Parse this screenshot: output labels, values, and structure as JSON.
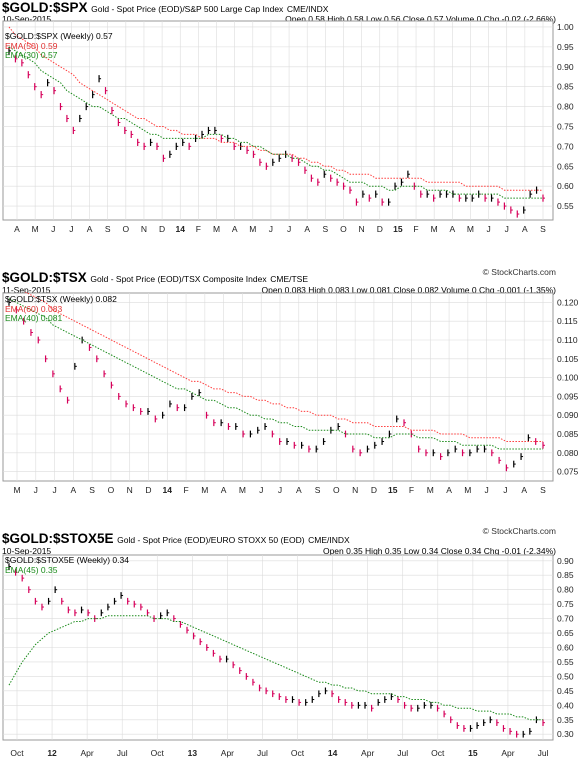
{
  "chart_data": [
    {
      "type": "line",
      "symbol": "$GOLD:$SPX",
      "description": "Gold - Spot Price (EOD)/S&P 500 Large Cap Index",
      "exchange": "CME/INDX",
      "date": "10-Sep-2015",
      "ohlc": {
        "open": "Open 0.58",
        "high": "High 0.58",
        "low": "Low 0.56",
        "close": "Close 0.57",
        "volume": "Volume 0",
        "chg": "Chg -0.02 (-2.66%)"
      },
      "legend": [
        "$GOLD:$SPX (Weekly) 0.57",
        "EMA(50) 0.59",
        "EMA(30) 0.57"
      ],
      "x_tick_labels": [
        "A",
        "M",
        "J",
        "J",
        "A",
        "S",
        "O",
        "N",
        "D",
        "14",
        "F",
        "M",
        "A",
        "M",
        "J",
        "J",
        "A",
        "S",
        "O",
        "N",
        "D",
        "15",
        "F",
        "M",
        "A",
        "M",
        "J",
        "J",
        "A",
        "S"
      ],
      "y_tick_labels": [
        "1.00",
        "0.95",
        "0.90",
        "0.85",
        "0.80",
        "0.75",
        "0.70",
        "0.65",
        "0.60",
        "0.55"
      ],
      "ylim": [
        0.515,
        1.015
      ],
      "series": [
        {
          "name": "$GOLD:$SPX (Weekly)",
          "values": [
            0.94,
            0.92,
            0.91,
            0.88,
            0.85,
            0.83,
            0.86,
            0.84,
            0.8,
            0.77,
            0.74,
            0.77,
            0.8,
            0.83,
            0.87,
            0.84,
            0.79,
            0.76,
            0.74,
            0.73,
            0.71,
            0.7,
            0.71,
            0.7,
            0.67,
            0.68,
            0.7,
            0.71,
            0.7,
            0.72,
            0.73,
            0.74,
            0.74,
            0.72,
            0.72,
            0.7,
            0.7,
            0.69,
            0.68,
            0.66,
            0.65,
            0.66,
            0.67,
            0.68,
            0.67,
            0.66,
            0.64,
            0.62,
            0.61,
            0.63,
            0.62,
            0.61,
            0.6,
            0.59,
            0.56,
            0.58,
            0.57,
            0.58,
            0.56,
            0.56,
            0.6,
            0.61,
            0.63,
            0.6,
            0.58,
            0.58,
            0.57,
            0.58,
            0.58,
            0.58,
            0.57,
            0.57,
            0.57,
            0.58,
            0.57,
            0.57,
            0.56,
            0.55,
            0.54,
            0.53,
            0.54,
            0.58,
            0.59,
            0.57
          ]
        },
        {
          "name": "EMA(50)",
          "values": [
            1.0,
            0.98,
            0.97,
            0.96,
            0.95,
            0.93,
            0.92,
            0.91,
            0.9,
            0.89,
            0.88,
            0.86,
            0.85,
            0.84,
            0.83,
            0.82,
            0.81,
            0.8,
            0.79,
            0.78,
            0.77,
            0.77,
            0.76,
            0.75,
            0.75,
            0.74,
            0.74,
            0.73,
            0.73,
            0.73,
            0.72,
            0.72,
            0.72,
            0.71,
            0.71,
            0.71,
            0.7,
            0.7,
            0.7,
            0.69,
            0.69,
            0.68,
            0.68,
            0.68,
            0.68,
            0.67,
            0.67,
            0.66,
            0.66,
            0.65,
            0.65,
            0.64,
            0.64,
            0.63,
            0.63,
            0.63,
            0.63,
            0.62,
            0.62,
            0.62,
            0.62,
            0.62,
            0.62,
            0.62,
            0.62,
            0.61,
            0.61,
            0.61,
            0.61,
            0.61,
            0.61,
            0.6,
            0.6,
            0.6,
            0.6,
            0.6,
            0.6,
            0.59,
            0.59,
            0.59,
            0.59,
            0.59,
            0.59,
            0.59
          ]
        },
        {
          "name": "EMA(30)",
          "values": [
            0.95,
            0.94,
            0.93,
            0.92,
            0.91,
            0.89,
            0.88,
            0.87,
            0.86,
            0.84,
            0.83,
            0.82,
            0.81,
            0.8,
            0.8,
            0.79,
            0.78,
            0.77,
            0.77,
            0.76,
            0.75,
            0.74,
            0.73,
            0.73,
            0.72,
            0.72,
            0.72,
            0.72,
            0.72,
            0.72,
            0.72,
            0.73,
            0.73,
            0.73,
            0.72,
            0.72,
            0.71,
            0.71,
            0.7,
            0.7,
            0.69,
            0.68,
            0.68,
            0.68,
            0.67,
            0.67,
            0.66,
            0.65,
            0.65,
            0.64,
            0.64,
            0.63,
            0.62,
            0.61,
            0.61,
            0.61,
            0.6,
            0.6,
            0.6,
            0.59,
            0.59,
            0.6,
            0.6,
            0.6,
            0.6,
            0.59,
            0.59,
            0.59,
            0.59,
            0.58,
            0.58,
            0.58,
            0.58,
            0.58,
            0.58,
            0.58,
            0.58,
            0.57,
            0.57,
            0.57,
            0.57,
            0.57,
            0.57,
            0.57
          ]
        }
      ]
    },
    {
      "type": "line",
      "symbol": "$GOLD:$TSX",
      "description": "Gold - Spot Price (EOD)/TSX Composite Index",
      "exchange": "CME/TSE",
      "date": "11-Sep-2015",
      "ohlc": {
        "open": "Open 0.083",
        "high": "High 0.083",
        "low": "Low 0.081",
        "close": "Close 0.082",
        "volume": "Volume 0",
        "chg": "Chg -0.001 (-1.35%)"
      },
      "legend": [
        "$GOLD:$TSX (Weekly) 0.082",
        "EMA(60) 0.083",
        "EMA(40) 0.081"
      ],
      "x_tick_labels": [
        "M",
        "J",
        "J",
        "A",
        "S",
        "O",
        "N",
        "D",
        "14",
        "F",
        "M",
        "A",
        "M",
        "J",
        "J",
        "A",
        "S",
        "O",
        "N",
        "D",
        "15",
        "F",
        "M",
        "A",
        "M",
        "J",
        "J",
        "A",
        "S"
      ],
      "y_tick_labels": [
        "0.120",
        "0.115",
        "0.110",
        "0.105",
        "0.100",
        "0.095",
        "0.090",
        "0.085",
        "0.080",
        "0.075"
      ],
      "ylim": [
        0.0725,
        0.1225
      ],
      "series": [
        {
          "name": "$GOLD:$TSX (Weekly)",
          "values": [
            0.12,
            0.118,
            0.115,
            0.112,
            0.11,
            0.105,
            0.101,
            0.097,
            0.094,
            0.103,
            0.11,
            0.108,
            0.105,
            0.101,
            0.098,
            0.095,
            0.093,
            0.092,
            0.091,
            0.091,
            0.089,
            0.09,
            0.093,
            0.092,
            0.092,
            0.095,
            0.096,
            0.09,
            0.088,
            0.088,
            0.087,
            0.087,
            0.085,
            0.085,
            0.086,
            0.087,
            0.085,
            0.083,
            0.083,
            0.082,
            0.082,
            0.081,
            0.081,
            0.083,
            0.086,
            0.087,
            0.085,
            0.081,
            0.08,
            0.081,
            0.082,
            0.083,
            0.085,
            0.089,
            0.088,
            0.085,
            0.081,
            0.08,
            0.08,
            0.079,
            0.08,
            0.081,
            0.08,
            0.08,
            0.081,
            0.081,
            0.08,
            0.078,
            0.076,
            0.077,
            0.079,
            0.084,
            0.083,
            0.082
          ]
        },
        {
          "name": "EMA(60)",
          "values": [
            0.125,
            0.124,
            0.123,
            0.122,
            0.121,
            0.12,
            0.118,
            0.117,
            0.116,
            0.115,
            0.114,
            0.113,
            0.112,
            0.111,
            0.11,
            0.109,
            0.108,
            0.107,
            0.106,
            0.105,
            0.104,
            0.103,
            0.102,
            0.101,
            0.1,
            0.099,
            0.099,
            0.098,
            0.097,
            0.097,
            0.096,
            0.096,
            0.095,
            0.095,
            0.094,
            0.094,
            0.093,
            0.093,
            0.092,
            0.092,
            0.091,
            0.091,
            0.09,
            0.09,
            0.09,
            0.089,
            0.089,
            0.088,
            0.088,
            0.088,
            0.087,
            0.087,
            0.087,
            0.087,
            0.087,
            0.086,
            0.086,
            0.086,
            0.086,
            0.085,
            0.085,
            0.085,
            0.085,
            0.084,
            0.084,
            0.084,
            0.084,
            0.084,
            0.083,
            0.083,
            0.083,
            0.083,
            0.083,
            0.083
          ]
        },
        {
          "name": "EMA(40)",
          "values": [
            0.121,
            0.12,
            0.119,
            0.118,
            0.117,
            0.116,
            0.114,
            0.113,
            0.112,
            0.111,
            0.11,
            0.109,
            0.108,
            0.107,
            0.106,
            0.105,
            0.104,
            0.103,
            0.102,
            0.101,
            0.1,
            0.099,
            0.098,
            0.097,
            0.097,
            0.096,
            0.095,
            0.094,
            0.094,
            0.093,
            0.092,
            0.092,
            0.091,
            0.09,
            0.09,
            0.089,
            0.089,
            0.088,
            0.088,
            0.087,
            0.087,
            0.086,
            0.086,
            0.086,
            0.086,
            0.086,
            0.085,
            0.085,
            0.085,
            0.085,
            0.084,
            0.084,
            0.084,
            0.085,
            0.085,
            0.085,
            0.084,
            0.084,
            0.084,
            0.083,
            0.083,
            0.083,
            0.082,
            0.082,
            0.082,
            0.082,
            0.082,
            0.081,
            0.081,
            0.081,
            0.081,
            0.081,
            0.081,
            0.081
          ]
        }
      ]
    },
    {
      "type": "line",
      "symbol": "$GOLD:$STOX5E",
      "description": "Gold - Spot Price (EOD)/EURO STOXX 50 (EOD)",
      "exchange": "CME/INDX",
      "date": "10-Sep-2015",
      "ohlc": {
        "open": "Open 0.35",
        "high": "High 0.35",
        "low": "Low 0.34",
        "close": "Close 0.34",
        "volume": "",
        "chg": "Chg -0.01 (-2.34%)"
      },
      "legend": [
        "$GOLD:$STOX5E (Weekly) 0.34",
        "EMA(45) 0.35"
      ],
      "x_tick_labels": [
        "Oct",
        "12",
        "Apr",
        "Jul",
        "Oct",
        "13",
        "Apr",
        "Jul",
        "Oct",
        "14",
        "Apr",
        "Jul",
        "Oct",
        "15",
        "Apr",
        "Jul"
      ],
      "y_tick_labels": [
        "0.90",
        "0.85",
        "0.80",
        "0.75",
        "0.70",
        "0.65",
        "0.60",
        "0.55",
        "0.50",
        "0.45",
        "0.40",
        "0.35",
        "0.30"
      ],
      "ylim": [
        0.28,
        0.92
      ],
      "series": [
        {
          "name": "$GOLD:$STOX5E (Weekly)",
          "values": [
            0.88,
            0.86,
            0.84,
            0.8,
            0.76,
            0.74,
            0.76,
            0.8,
            0.76,
            0.73,
            0.72,
            0.73,
            0.72,
            0.7,
            0.72,
            0.74,
            0.76,
            0.78,
            0.76,
            0.75,
            0.74,
            0.72,
            0.7,
            0.71,
            0.72,
            0.7,
            0.68,
            0.66,
            0.64,
            0.62,
            0.6,
            0.58,
            0.56,
            0.56,
            0.54,
            0.52,
            0.5,
            0.48,
            0.46,
            0.45,
            0.44,
            0.43,
            0.42,
            0.42,
            0.41,
            0.41,
            0.42,
            0.44,
            0.45,
            0.44,
            0.42,
            0.41,
            0.4,
            0.4,
            0.4,
            0.39,
            0.41,
            0.42,
            0.43,
            0.42,
            0.4,
            0.39,
            0.39,
            0.4,
            0.4,
            0.39,
            0.37,
            0.35,
            0.33,
            0.32,
            0.32,
            0.33,
            0.34,
            0.35,
            0.34,
            0.32,
            0.31,
            0.3,
            0.3,
            0.31,
            0.35,
            0.34
          ]
        },
        {
          "name": "EMA(45)",
          "values": [
            0.47,
            0.51,
            0.55,
            0.58,
            0.61,
            0.63,
            0.65,
            0.66,
            0.67,
            0.68,
            0.69,
            0.69,
            0.7,
            0.7,
            0.7,
            0.71,
            0.71,
            0.71,
            0.71,
            0.71,
            0.71,
            0.71,
            0.7,
            0.7,
            0.7,
            0.69,
            0.69,
            0.68,
            0.67,
            0.66,
            0.65,
            0.64,
            0.63,
            0.62,
            0.61,
            0.6,
            0.59,
            0.58,
            0.57,
            0.56,
            0.55,
            0.54,
            0.53,
            0.52,
            0.51,
            0.5,
            0.49,
            0.48,
            0.48,
            0.47,
            0.47,
            0.46,
            0.46,
            0.45,
            0.45,
            0.44,
            0.44,
            0.44,
            0.44,
            0.43,
            0.43,
            0.42,
            0.42,
            0.42,
            0.41,
            0.41,
            0.4,
            0.4,
            0.39,
            0.39,
            0.39,
            0.38,
            0.38,
            0.38,
            0.37,
            0.37,
            0.37,
            0.36,
            0.36,
            0.35,
            0.35,
            0.35
          ]
        }
      ]
    }
  ],
  "colors": {
    "price": "#000000",
    "down_bar": "#d6005a",
    "ema_slow": "#ff3b3b",
    "ema_fast": "#1a8a1a",
    "grid": "#dcdcdc",
    "frame": "#999999"
  },
  "credit": "© StockCharts.com"
}
